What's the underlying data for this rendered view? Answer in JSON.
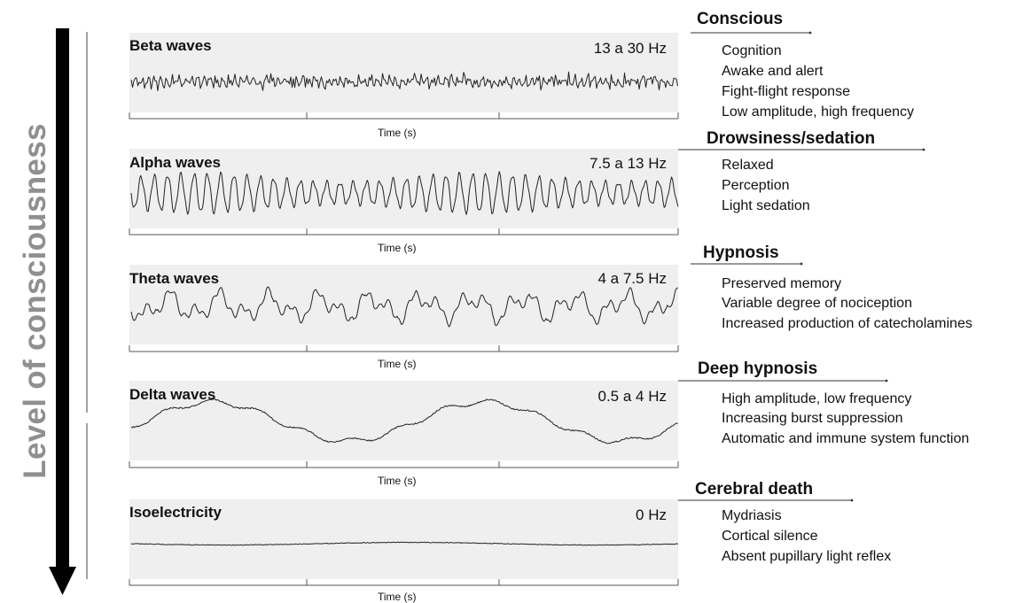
{
  "axis_label": "Level of consciousness",
  "time_label": "Time (s)",
  "panels": [
    {
      "name": "Beta waves",
      "freq": "13 a 30 Hz"
    },
    {
      "name": "Alpha waves",
      "freq": "7.5 a 13 Hz"
    },
    {
      "name": "Theta waves",
      "freq": "4 a 7.5 Hz"
    },
    {
      "name": "Delta waves",
      "freq": "0.5 a 4 Hz"
    },
    {
      "name": "Isoelectricity",
      "freq": "0 Hz"
    }
  ],
  "states": [
    {
      "title": "Conscious",
      "items": [
        "Cognition",
        "Awake and alert",
        "Fight-flight response",
        "Low amplitude, high frequency"
      ]
    },
    {
      "title": "Drowsiness/sedation",
      "items": [
        "Relaxed",
        "Perception",
        "Light sedation"
      ]
    },
    {
      "title": "Hypnosis",
      "items": [
        "Preserved memory",
        "Variable degree of nociception",
        "Increased production of catecholamines"
      ]
    },
    {
      "title": "Deep hypnosis",
      "items": [
        "High amplitude, low frequency",
        "Increasing burst suppression",
        "Automatic and immune system function"
      ]
    },
    {
      "title": "Cerebral death",
      "items": [
        "Mydriasis",
        "Cortical silence",
        "Absent pupillary light reflex"
      ]
    }
  ],
  "colors": {
    "panel_bg": "#efefef",
    "trace": "#222222",
    "axis_label": "#8f8f8f",
    "arrow": "#000000"
  }
}
